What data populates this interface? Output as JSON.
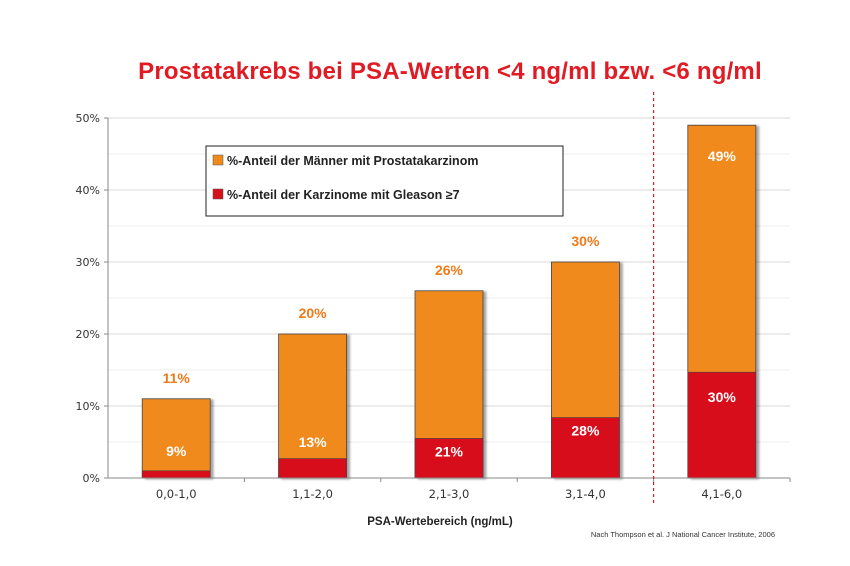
{
  "chart_data": {
    "type": "bar",
    "title": "Prostatakrebs bei PSA-Werten <4 ng/ml bzw. <6 ng/ml",
    "xlabel": "PSA-Wertebereich (ng/mL)",
    "ylabel": "",
    "ylim": [
      0,
      50
    ],
    "yticks": [
      "0%",
      "10%",
      "20%",
      "30%",
      "40%",
      "50%"
    ],
    "categories": [
      "0,0-1,0",
      "1,1-2,0",
      "2,1-3,0",
      "3,1-4,0",
      "4,1-6,0"
    ],
    "series": [
      {
        "name": "%-Anteil der Männer mit Prostatakarzinom",
        "color": "#f08a1c",
        "values": [
          11,
          20,
          26,
          30,
          49
        ],
        "labels": [
          "11%",
          "20%",
          "26%",
          "30%",
          "49%"
        ]
      },
      {
        "name": "%-Anteil der Karzinome mit Gleason ≥7",
        "color": "#d7101b",
        "values": [
          1,
          2.7,
          5.5,
          8.4,
          14.7
        ],
        "labels": [
          "9%",
          "13%",
          "21%",
          "28%",
          "30%"
        ]
      }
    ],
    "annotations": {
      "separator_after_category": "3,1-4,0",
      "source": "Nach Thompson et al. J National Cancer Institute, 2006"
    }
  }
}
